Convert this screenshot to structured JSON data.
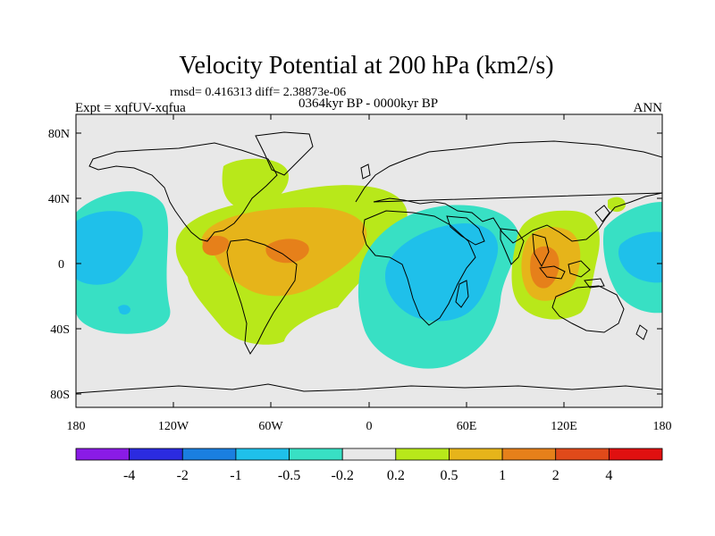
{
  "title": "Velocity Potential at 200 hPa (km2/s)",
  "stats_line": "rmsd= 0.416313 diff= 2.38873e-06",
  "left_label": "Expt = xqfUV-xqfua",
  "center_label": "0364kyr BP - 0000kyr BP",
  "right_label": "ANN",
  "lon_ticks": [
    "180",
    "120W",
    "60W",
    "0",
    "60E",
    "120E",
    "180"
  ],
  "lat_ticks": [
    "80N",
    "40N",
    "0",
    "40S",
    "80S"
  ],
  "colorbar": {
    "labels": [
      "-4",
      "-2",
      "-1",
      "-0.5",
      "-0.2",
      "0.2",
      "0.5",
      "1",
      "2",
      "4"
    ],
    "colors": [
      "#8a1be6",
      "#2b2be0",
      "#1a7fe0",
      "#1fc0ea",
      "#38e0c4",
      "#e8e8e8",
      "#b8e81a",
      "#e6b41a",
      "#e6801a",
      "#e04a1a",
      "#e01010"
    ]
  },
  "fill_colors": {
    "background": "#e8e8e8",
    "neg_weak": "#38e0c4",
    "neg_mid": "#1fc0ea",
    "pos_weak": "#b8e81a",
    "pos_mid": "#e6b41a",
    "pos_strong": "#e6801a"
  }
}
